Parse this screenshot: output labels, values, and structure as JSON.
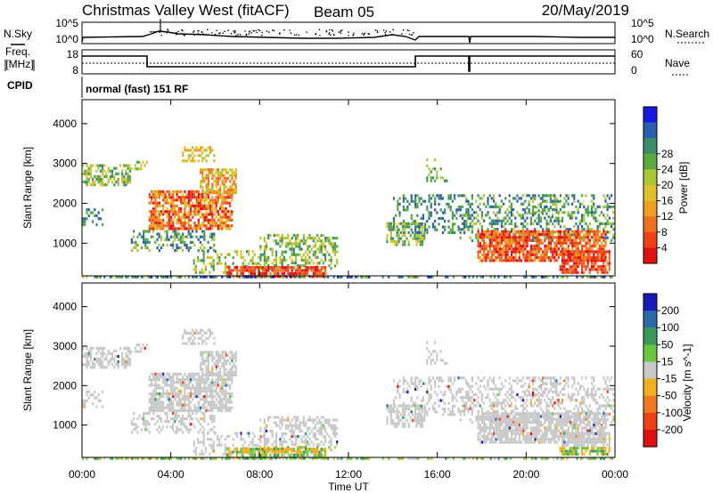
{
  "header": {
    "station": "Christmas Valley West (fitACF)",
    "beam": "Beam 05",
    "date": "20/May/2019"
  },
  "aux_panels": {
    "nsky_label": "N.Sky",
    "nsky_ticks": [
      "10^5",
      "10^0"
    ],
    "nsearch_label": "N.Search",
    "nsearch_ticks": [
      "10^5",
      "10^0"
    ],
    "freq_label_1": "Freq.",
    "freq_label_2": "[MHz]",
    "freq_ticks": [
      "18",
      "8"
    ],
    "nave_label": "Nave",
    "nave_ticks": [
      "60",
      "0"
    ],
    "cpid_label": "CPID",
    "cpid_value": "normal (fast) 151 RF"
  },
  "chart_data": [
    {
      "type": "heatmap",
      "title": "",
      "xlabel": "",
      "ylabel": "Slant Range [km]",
      "xlim": [
        0,
        24
      ],
      "ylim": [
        180,
        4600
      ],
      "yticks": [
        1000,
        2000,
        3000,
        4000
      ],
      "colorbar": {
        "label": "Power [dB]",
        "ticks": [
          "4",
          "8",
          "12",
          "16",
          "20",
          "24",
          "28"
        ],
        "colors": [
          "#1818e0",
          "#2a5fb0",
          "#3d8c6a",
          "#5aaa3e",
          "#a8c838",
          "#e0c028",
          "#f0a020",
          "#f07020",
          "#f04018",
          "#e01010"
        ]
      }
    },
    {
      "type": "heatmap",
      "title": "",
      "xlabel": "Time UT",
      "ylabel": "Slant Range [km]",
      "xlim": [
        0,
        24
      ],
      "ylim": [
        180,
        4600
      ],
      "xticks": [
        "00:00",
        "04:00",
        "08:00",
        "12:00",
        "16:00",
        "20:00",
        "00:00"
      ],
      "yticks": [
        1000,
        2000,
        3000,
        4000
      ],
      "colorbar": {
        "label": "Velocity [m s^-1]",
        "ticks": [
          "200",
          "100",
          "50",
          "15",
          "-15",
          "-50",
          "-100",
          "-200"
        ],
        "colors": [
          "#1a1ab8",
          "#2a6aa8",
          "#3a9a5a",
          "#6ac840",
          "#c8c8c8",
          "#f0b020",
          "#f07a20",
          "#f04018",
          "#e01010"
        ]
      }
    }
  ]
}
